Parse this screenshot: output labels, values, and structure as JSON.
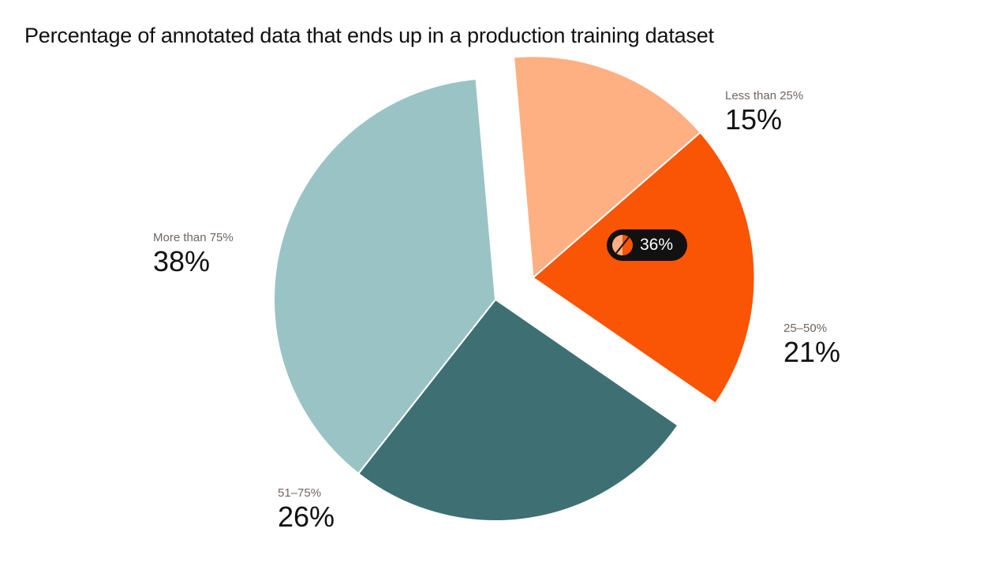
{
  "chart_data": {
    "type": "pie",
    "title": "Percentage of annotated data that ends up in a production training dataset",
    "slices": [
      {
        "label": "Less than 25%",
        "value": 15,
        "display": "15%",
        "color": "#ffb083",
        "exploded": true
      },
      {
        "label": "25–50%",
        "value": 21,
        "display": "21%",
        "color": "#fa5405",
        "exploded": true
      },
      {
        "label": "51–75%",
        "value": 26,
        "display": "26%",
        "color": "#3e7073",
        "exploded": false
      },
      {
        "label": "More than 75%",
        "value": 38,
        "display": "38%",
        "color": "#9ac3c5",
        "exploded": false
      }
    ],
    "annotation": {
      "text": "36%"
    }
  }
}
